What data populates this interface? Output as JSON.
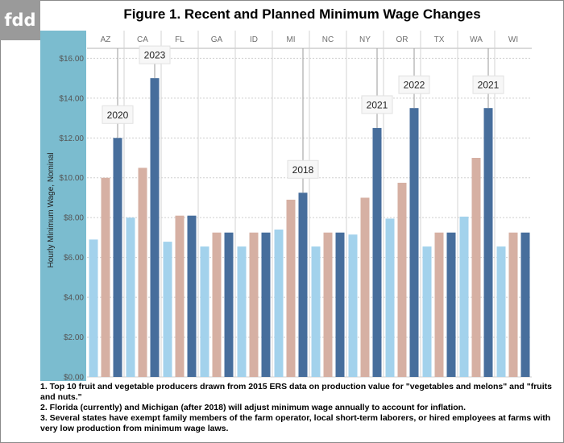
{
  "logo": {
    "text": "fdd"
  },
  "title": "Figure 1. Recent and Planned Minimum Wage Changes",
  "notes": [
    "1. Top 10 fruit and vegetable producers drawn from 2015 ERS data on production value for \"vegetables and melons\" and \"fruits and nuts.\"",
    "2. Florida (currently) and Michigan (after 2018) will adjust minimum wage annually to account for inflation.",
    "3. Several states have exempt family members of the farm operator, local short-term laborers, or hired employees at farms with very low production from minimum wage laws."
  ],
  "colors": {
    "sidebar": "#7bbccf",
    "series": [
      "#a3d2ec",
      "#d6b0a3",
      "#476e9c"
    ],
    "grid": "#cfcfcf",
    "axis_text": "#6e6e6e"
  },
  "chart_data": {
    "type": "bar",
    "categories": [
      "AZ",
      "CA",
      "FL",
      "GA",
      "ID",
      "MI",
      "NC",
      "NY",
      "OR",
      "TX",
      "WA",
      "WI"
    ],
    "ylabel": "Hourly Minimum Wage, Nominal",
    "ylim": [
      0,
      16.5
    ],
    "yticks": [
      0,
      2,
      4,
      6,
      8,
      10,
      12,
      14,
      16
    ],
    "ytick_labels": [
      "$0.00",
      "$2.00",
      "$4.00",
      "$6.00",
      "$8.00",
      "$10.00",
      "$12.00",
      "$14.00",
      "$16.00"
    ],
    "grid": true,
    "series": [
      {
        "values": [
          6.9,
          8.0,
          6.79,
          6.55,
          6.55,
          7.4,
          6.55,
          7.15,
          7.95,
          6.55,
          8.05,
          6.55
        ]
      },
      {
        "values": [
          10.0,
          10.5,
          8.1,
          7.25,
          7.25,
          8.9,
          7.25,
          9.0,
          9.75,
          7.25,
          11.0,
          7.25
        ]
      },
      {
        "values": [
          12.0,
          15.0,
          8.1,
          7.25,
          7.25,
          9.25,
          7.25,
          12.5,
          13.5,
          7.25,
          13.5,
          7.25
        ]
      }
    ],
    "annotations": [
      {
        "category": "AZ",
        "label": "2020"
      },
      {
        "category": "CA",
        "label": "2023"
      },
      {
        "category": "MI",
        "label": "2018"
      },
      {
        "category": "NY",
        "label": "2021"
      },
      {
        "category": "OR",
        "label": "2022"
      },
      {
        "category": "WA",
        "label": "2021"
      }
    ]
  }
}
